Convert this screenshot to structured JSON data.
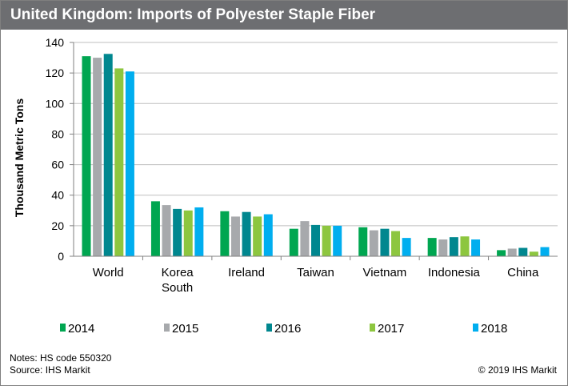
{
  "title": "United Kingdom: Imports of Polyester Staple Fiber",
  "notes": "Notes: HS code 550320",
  "source": "Source: IHS Markit",
  "copyright": "© 2019 IHS Markit",
  "chart_data": {
    "type": "bar",
    "ylabel": "Thousand Metric Tons",
    "xlabel": "",
    "ylim": [
      0,
      140
    ],
    "yticks": [
      0,
      20,
      40,
      60,
      80,
      100,
      120,
      140
    ],
    "grid": true,
    "legend_position": "bottom",
    "categories": [
      [
        "World"
      ],
      [
        "Korea",
        "South"
      ],
      [
        "Ireland"
      ],
      [
        "Taiwan"
      ],
      [
        "Vietnam"
      ],
      [
        "Indonesia"
      ],
      [
        "China"
      ]
    ],
    "series": [
      {
        "name": "2014",
        "color": "#00a651",
        "values": [
          131,
          36,
          29.5,
          18,
          19,
          12,
          4
        ]
      },
      {
        "name": "2015",
        "color": "#a7a9ac",
        "values": [
          130,
          33.5,
          26,
          23,
          17,
          11,
          5
        ]
      },
      {
        "name": "2016",
        "color": "#00878f",
        "values": [
          132.5,
          31,
          29,
          20.5,
          18,
          12.5,
          5.5
        ]
      },
      {
        "name": "2017",
        "color": "#8dc63f",
        "values": [
          123,
          30,
          26,
          20,
          16.5,
          13,
          3
        ]
      },
      {
        "name": "2018",
        "color": "#00aeef",
        "values": [
          121,
          32,
          27.5,
          20,
          12,
          11,
          6
        ]
      }
    ]
  }
}
